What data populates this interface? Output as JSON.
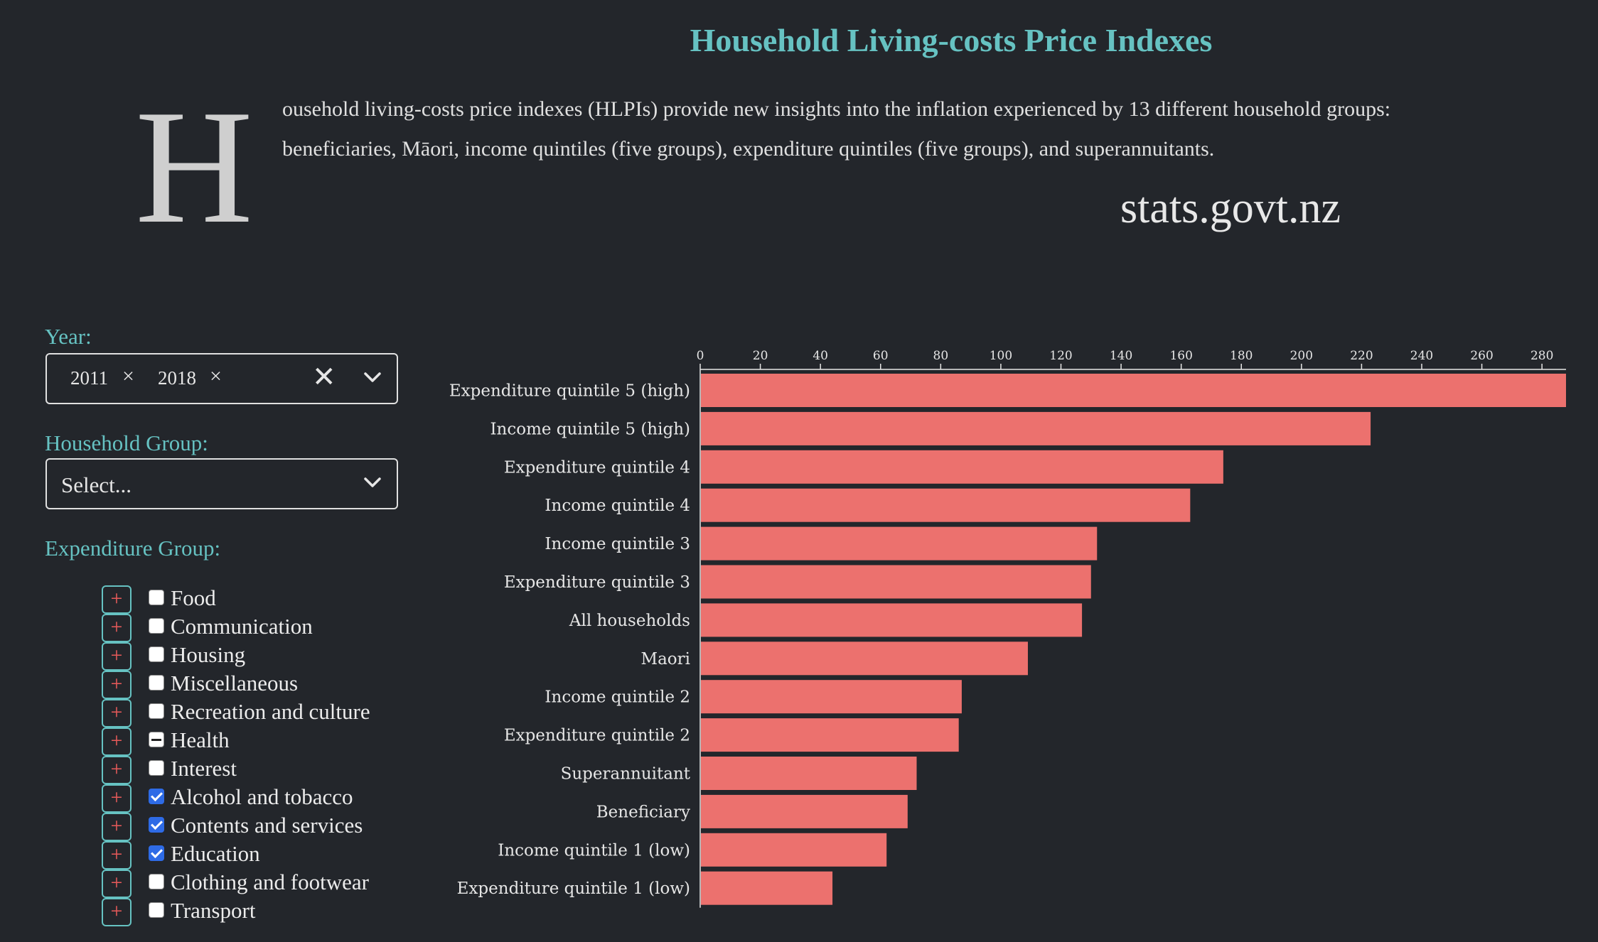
{
  "page": {
    "title": "Household Living-costs Price Indexes",
    "dropcap": "H",
    "intro": "ousehold living-costs price indexes (HLPIs) provide new insights into the inflation experienced by 13 different household groups: beneficiaries, Māori, income quintiles (five groups), expenditure quintiles (five groups), and superannuitants.",
    "source": "stats.govt.nz"
  },
  "filters": {
    "year_label": "Year:",
    "year_chips": [
      "2011",
      "2018"
    ],
    "chip_remove": "×",
    "clear_all": "✕",
    "household_label": "Household Group:",
    "household_placeholder": "Select...",
    "expenditure_label": "Expenditure Group:"
  },
  "expenditure_groups": [
    {
      "label": "Food",
      "state": "unchecked",
      "expand": "+"
    },
    {
      "label": "Communication",
      "state": "unchecked",
      "expand": "+"
    },
    {
      "label": "Housing",
      "state": "unchecked",
      "expand": "+"
    },
    {
      "label": "Miscellaneous",
      "state": "unchecked",
      "expand": "+"
    },
    {
      "label": "Recreation and culture",
      "state": "unchecked",
      "expand": "+"
    },
    {
      "label": "Health",
      "state": "indeterminate",
      "expand": "+"
    },
    {
      "label": "Interest",
      "state": "unchecked",
      "expand": "+"
    },
    {
      "label": "Alcohol and tobacco",
      "state": "checked",
      "expand": "+"
    },
    {
      "label": "Contents and services",
      "state": "checked",
      "expand": "+"
    },
    {
      "label": "Education",
      "state": "checked",
      "expand": "+"
    },
    {
      "label": "Clothing and footwear",
      "state": "unchecked",
      "expand": "+"
    },
    {
      "label": "Transport",
      "state": "unchecked",
      "expand": "+"
    }
  ],
  "colors": {
    "background": "#23262b",
    "accent": "#66c2c2",
    "bar": "#ec716e",
    "checkbox_checked": "#2e6be6",
    "plus": "#e85a5a"
  },
  "chart_data": {
    "type": "bar",
    "orientation": "horizontal",
    "title": "",
    "xlabel": "",
    "ylabel": "",
    "xlim": [
      0,
      288
    ],
    "ticks": [
      0,
      20,
      40,
      60,
      80,
      100,
      120,
      140,
      160,
      180,
      200,
      220,
      240,
      260,
      280
    ],
    "axis_position": "top",
    "grid": false,
    "categories": [
      "Expenditure quintile 5 (high)",
      "Income quintile 5 (high)",
      "Expenditure quintile 4",
      "Income quintile 4",
      "Income quintile 3",
      "Expenditure quintile 3",
      "All households",
      "Maori",
      "Income quintile 2",
      "Expenditure quintile 2",
      "Superannuitant",
      "Beneficiary",
      "Income quintile 1 (low)",
      "Expenditure quintile 1 (low)"
    ],
    "values": [
      288,
      223,
      174,
      163,
      132,
      130,
      127,
      109,
      87,
      86,
      72,
      69,
      62,
      44
    ]
  }
}
